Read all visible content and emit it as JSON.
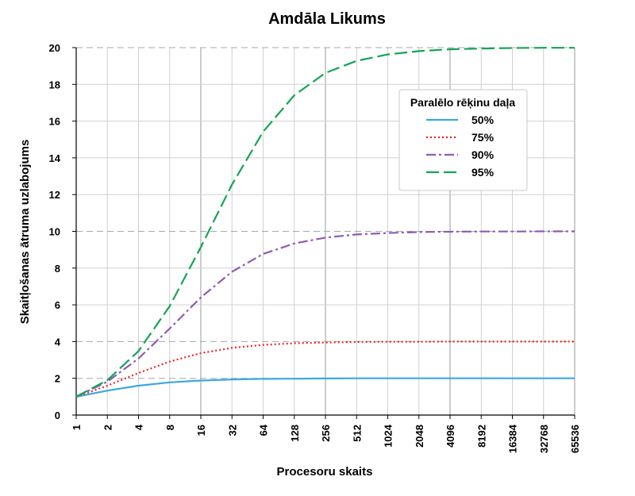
{
  "chart_data": {
    "type": "line",
    "title": "Amdāla Likums",
    "xlabel": "Procesoru skaits",
    "ylabel": "Skaitļošanas ātruma uzlabojums",
    "x_scale": "log2",
    "x": [
      1,
      2,
      4,
      8,
      16,
      32,
      64,
      128,
      256,
      512,
      1024,
      2048,
      4096,
      8192,
      16384,
      32768,
      65536
    ],
    "x_tick_labels": [
      "1",
      "2",
      "4",
      "8",
      "16",
      "32",
      "64",
      "128",
      "256",
      "512",
      "1024",
      "2048",
      "4096",
      "8192",
      "16384",
      "32768",
      "65536"
    ],
    "ylim": [
      0,
      20
    ],
    "y_ticks": [
      0,
      2,
      4,
      6,
      8,
      10,
      12,
      14,
      16,
      18,
      20
    ],
    "grid": true,
    "legend": {
      "title": "Paralēlo rēķinu daļa",
      "placement": "top-right"
    },
    "series": [
      {
        "name": "50%",
        "color": "#3aa9e0",
        "dash": "solid",
        "values": [
          1.0,
          1.33,
          1.6,
          1.78,
          1.88,
          1.94,
          1.97,
          1.98,
          1.99,
          2.0,
          2.0,
          2.0,
          2.0,
          2.0,
          2.0,
          2.0,
          2.0
        ]
      },
      {
        "name": "75%",
        "color": "#e8262c",
        "dash": "dotted",
        "values": [
          1.0,
          1.6,
          2.29,
          2.91,
          3.37,
          3.66,
          3.82,
          3.91,
          3.95,
          3.98,
          3.99,
          3.99,
          4.0,
          4.0,
          4.0,
          4.0,
          4.0
        ]
      },
      {
        "name": "90%",
        "color": "#8e5bb5",
        "dash": "dashdot",
        "values": [
          1.0,
          1.82,
          3.08,
          4.71,
          6.4,
          7.8,
          8.77,
          9.34,
          9.66,
          9.83,
          9.91,
          9.96,
          9.98,
          9.99,
          9.99,
          10.0,
          10.0
        ]
      },
      {
        "name": "95%",
        "color": "#13a456",
        "dash": "longdash",
        "values": [
          1.0,
          1.9,
          3.48,
          5.93,
          9.14,
          12.55,
          15.42,
          17.41,
          18.62,
          19.28,
          19.63,
          19.81,
          19.91,
          19.95,
          19.98,
          19.99,
          19.99
        ]
      }
    ]
  }
}
